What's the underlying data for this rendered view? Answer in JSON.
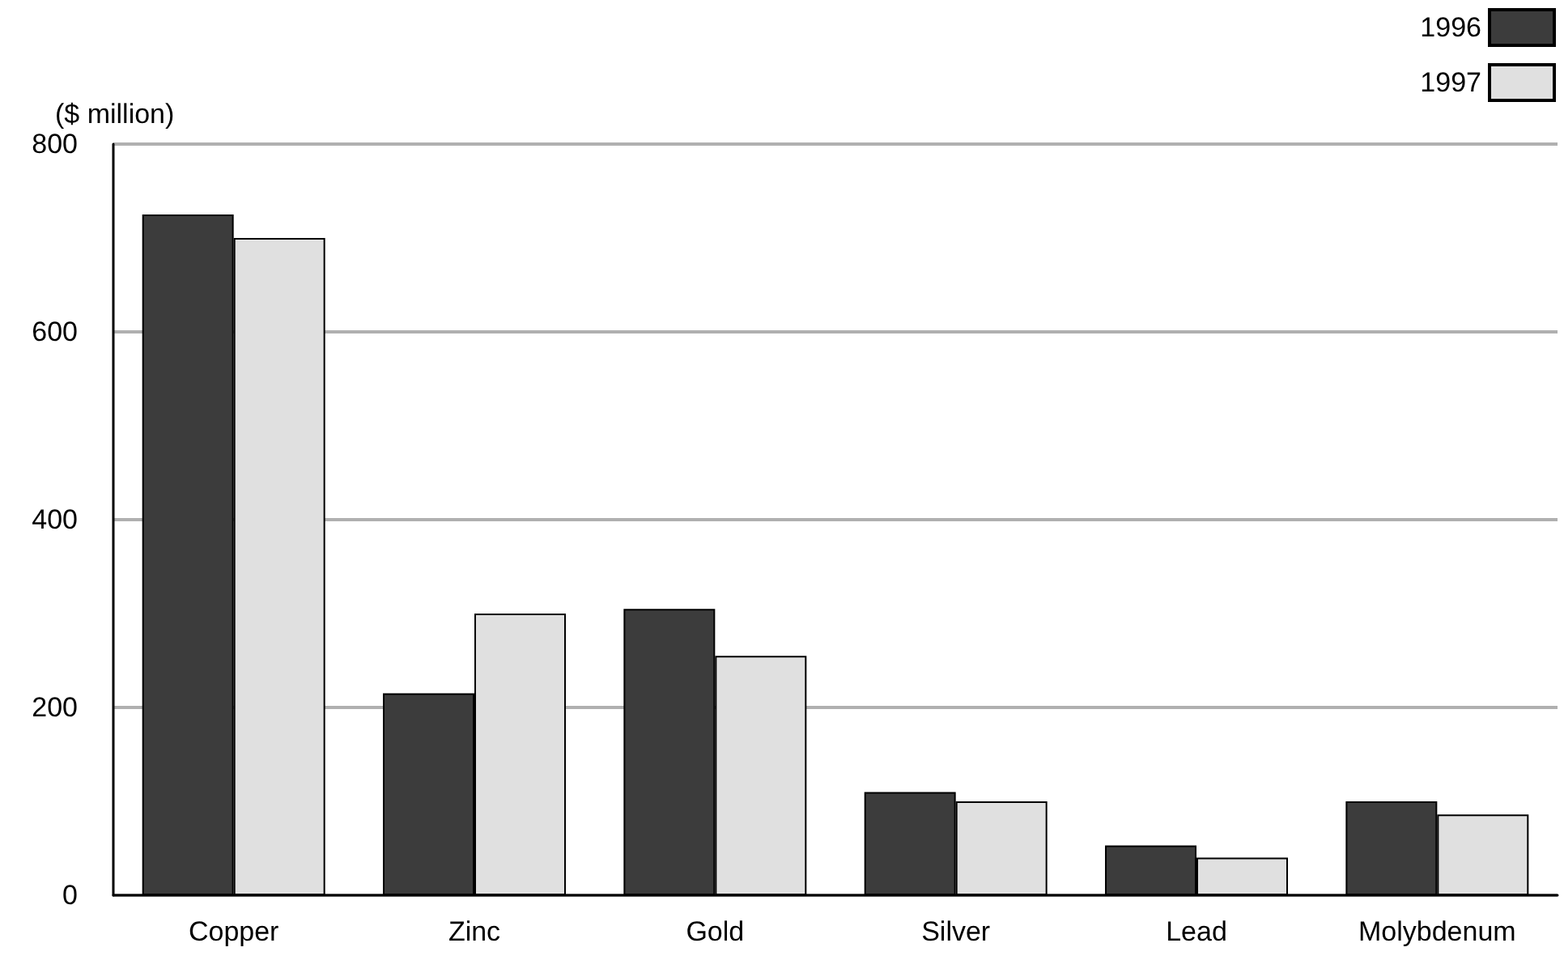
{
  "chart_data": {
    "type": "bar",
    "ylabel": "($ million)",
    "categories": [
      "Copper",
      "Zinc",
      "Gold",
      "Silver",
      "Lead",
      "Molybdenum"
    ],
    "series": [
      {
        "name": "1996",
        "color": "#3c3c3c",
        "values": [
          725,
          215,
          305,
          110,
          53,
          100
        ]
      },
      {
        "name": "1997",
        "color": "#e0e0e0",
        "values": [
          700,
          300,
          255,
          100,
          40,
          86
        ]
      }
    ],
    "ylim": [
      0,
      800
    ],
    "yticks": [
      0,
      200,
      400,
      600,
      800
    ],
    "grid": "y",
    "legend": "top right"
  }
}
